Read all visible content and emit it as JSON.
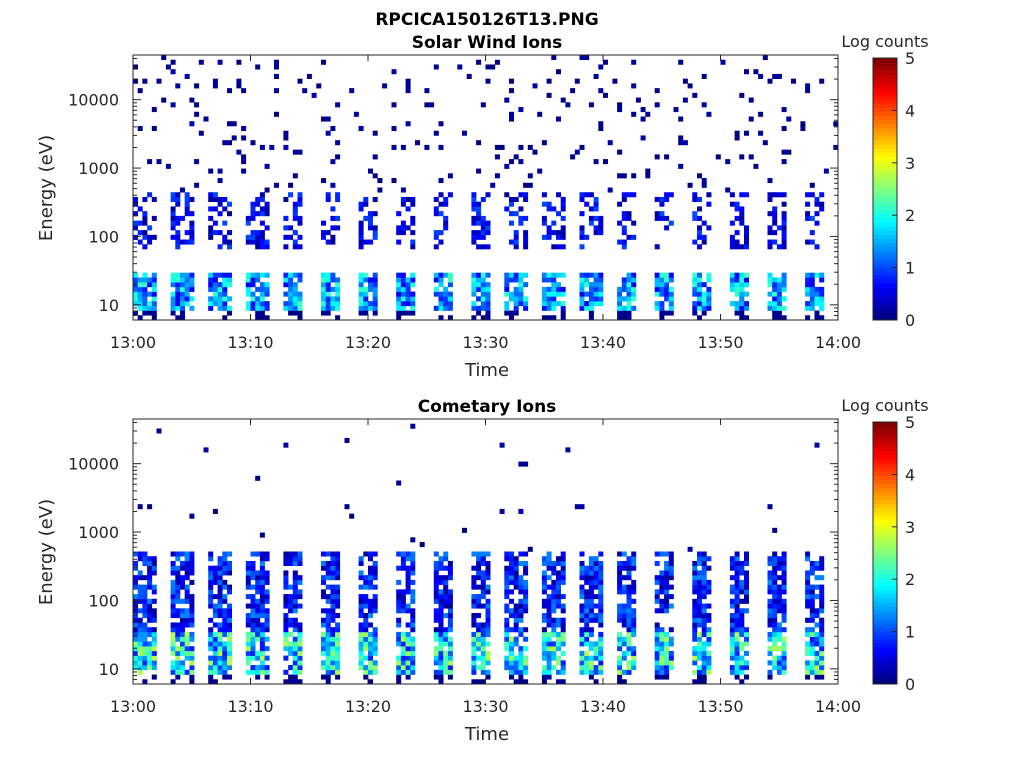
{
  "figure": {
    "title": "RPCICA150126T13.PNG"
  },
  "colorbar": {
    "label": "Log counts",
    "ticks": [
      "0",
      "1",
      "2",
      "3",
      "4",
      "5"
    ],
    "range": [
      0,
      5
    ],
    "colormap": "jet"
  },
  "chart_data": [
    {
      "type": "heatmap",
      "title": "Solar Wind Ions",
      "xlabel": "Time",
      "ylabel": "Energy (eV)",
      "x_range": [
        "13:00",
        "14:00"
      ],
      "x_ticks": [
        "13:00",
        "13:10",
        "13:20",
        "13:30",
        "13:40",
        "13:50",
        "14:00"
      ],
      "y_scale": "log",
      "y_range": [
        6,
        45000
      ],
      "y_ticks": [
        "10",
        "100",
        "1000",
        "10000"
      ],
      "sweep_count": 19,
      "description_values": {
        "low_energy_band_eV": [
          8,
          28
        ],
        "low_energy_peak_log_counts": 2.2,
        "mid_energy_band_eV": [
          70,
          450
        ],
        "mid_energy_peak_log_counts": 1.0,
        "high_energy_sparse_log_counts": 0.2
      }
    },
    {
      "type": "heatmap",
      "title": "Cometary Ions",
      "xlabel": "Time",
      "ylabel": "Energy (eV)",
      "x_range": [
        "13:00",
        "14:00"
      ],
      "x_ticks": [
        "13:00",
        "13:10",
        "13:20",
        "13:30",
        "13:40",
        "13:50",
        "14:00"
      ],
      "y_scale": "log",
      "y_range": [
        6,
        45000
      ],
      "y_ticks": [
        "10",
        "100",
        "1000",
        "10000"
      ],
      "sweep_count": 19,
      "description_values": {
        "low_energy_band_eV": [
          8,
          35
        ],
        "low_energy_peak_log_counts": 2.8,
        "mid_energy_band_eV": [
          35,
          500
        ],
        "mid_energy_peak_log_counts": 1.3,
        "high_energy_sparse_log_counts": 0.2
      }
    }
  ]
}
